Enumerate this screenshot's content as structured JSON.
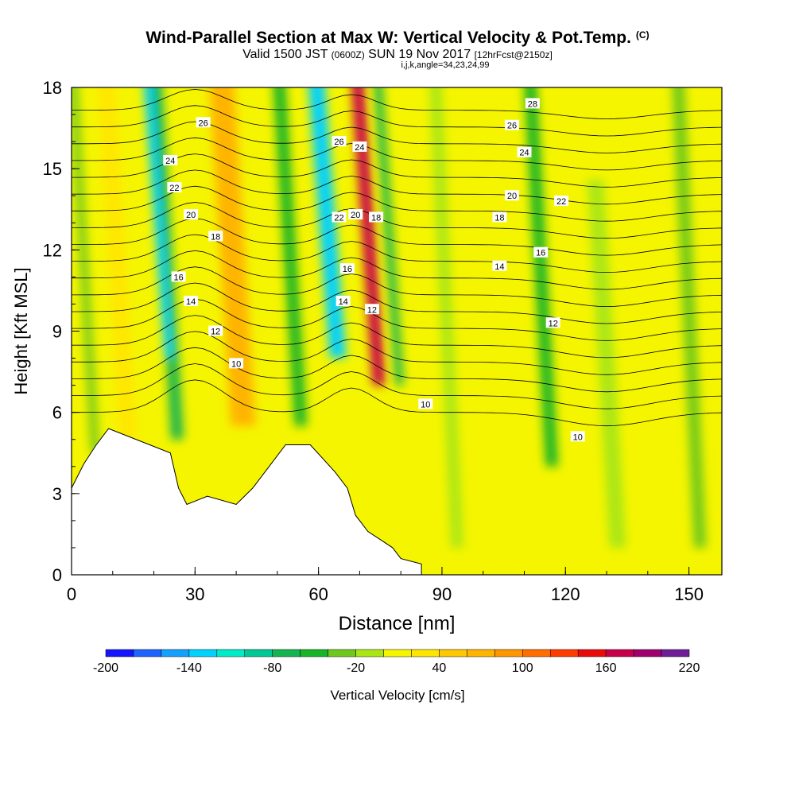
{
  "title": {
    "main": "Wind-Parallel Section at Max W: Vertical Velocity & Pot.Temp.",
    "copyright": "(C)",
    "valid_a": "Valid 1500 JST",
    "valid_small": "(0600Z)",
    "valid_b": "SUN 19 Nov 2017",
    "forecast": "[12hrFcst@2150z]",
    "indices": "i,j,k,angle=34,23,24,99"
  },
  "chart_data": {
    "type": "heatmap",
    "xlabel": "Distance [nm]",
    "ylabel": "Height [Kft MSL]",
    "xlim": [
      0,
      158
    ],
    "ylim": [
      0,
      18
    ],
    "x_ticks": [
      0,
      30,
      60,
      90,
      120,
      150
    ],
    "y_ticks": [
      0,
      3,
      6,
      9,
      12,
      15,
      18
    ],
    "colorbar": {
      "label": "Vertical Velocity [cm/s]",
      "levels": [
        -200,
        -180,
        -160,
        -140,
        -120,
        -100,
        -80,
        -60,
        -40,
        -20,
        0,
        20,
        40,
        60,
        80,
        100,
        120,
        140,
        160,
        180,
        200,
        220
      ],
      "tick_labels": [
        "-200",
        "-140",
        "-80",
        "-20",
        "40",
        "100",
        "160",
        "220"
      ],
      "colors": [
        "#1414ff",
        "#1e64ff",
        "#14a0ff",
        "#00d2ff",
        "#00ebc8",
        "#00c896",
        "#14b450",
        "#18b428",
        "#6ec81e",
        "#aae614",
        "#f5f500",
        "#ffe600",
        "#ffc800",
        "#ffb400",
        "#ff9600",
        "#ff6e00",
        "#ff3c00",
        "#eb0a0a",
        "#c8004b",
        "#a0006e",
        "#6e1e96"
      ]
    },
    "vertical_velocity_bands": [
      {
        "x": 3,
        "w": 2,
        "top": 18,
        "bottom": 4.5,
        "value": -40
      },
      {
        "x": 11,
        "w": 4,
        "top": 18,
        "bottom": 5.0,
        "value": 30
      },
      {
        "x": 23,
        "w": 3,
        "top": 18,
        "bottom": 5.0,
        "value": -80
      },
      {
        "x": 21,
        "w": 2,
        "top": 18,
        "bottom": 8.0,
        "value": -140
      },
      {
        "x": 39,
        "w": 6,
        "top": 18,
        "bottom": 5.5,
        "value": 70
      },
      {
        "x": 53,
        "w": 3,
        "top": 18,
        "bottom": 5.5,
        "value": -60
      },
      {
        "x": 62,
        "w": 4,
        "top": 18,
        "bottom": 8.0,
        "value": -140
      },
      {
        "x": 72,
        "w": 3,
        "top": 18,
        "bottom": 7.0,
        "value": 160
      },
      {
        "x": 77,
        "w": 2,
        "top": 18,
        "bottom": 7.0,
        "value": -80
      },
      {
        "x": 91,
        "w": 3,
        "top": 18,
        "bottom": 1.0,
        "value": -20
      },
      {
        "x": 114,
        "w": 3,
        "top": 18,
        "bottom": 4.0,
        "value": -60
      },
      {
        "x": 130,
        "w": 4,
        "top": 14,
        "bottom": 1.0,
        "value": -20
      },
      {
        "x": 150,
        "w": 3,
        "top": 18,
        "bottom": 1.0,
        "value": -30
      }
    ],
    "terrain": [
      [
        0,
        3.2
      ],
      [
        3,
        4.1
      ],
      [
        6,
        4.8
      ],
      [
        9,
        5.4
      ],
      [
        24,
        4.5
      ],
      [
        26,
        3.2
      ],
      [
        28,
        2.6
      ],
      [
        33,
        2.9
      ],
      [
        40,
        2.6
      ],
      [
        44,
        3.2
      ],
      [
        48,
        4.0
      ],
      [
        52,
        4.8
      ],
      [
        58,
        4.8
      ],
      [
        64,
        3.8
      ],
      [
        67,
        3.2
      ],
      [
        69,
        2.2
      ],
      [
        72,
        1.6
      ],
      [
        75,
        1.3
      ],
      [
        78,
        1.0
      ],
      [
        80,
        0.6
      ],
      [
        85,
        0.4
      ]
    ],
    "theta_contour_labels": [
      {
        "x": 32,
        "y": 16.7,
        "label": "26"
      },
      {
        "x": 24,
        "y": 15.3,
        "label": "24"
      },
      {
        "x": 25,
        "y": 14.3,
        "label": "22"
      },
      {
        "x": 29,
        "y": 13.3,
        "label": "20"
      },
      {
        "x": 35,
        "y": 12.5,
        "label": "18"
      },
      {
        "x": 26,
        "y": 11.0,
        "label": "16"
      },
      {
        "x": 29,
        "y": 10.1,
        "label": "14"
      },
      {
        "x": 35,
        "y": 9.0,
        "label": "12"
      },
      {
        "x": 40,
        "y": 7.8,
        "label": "10"
      },
      {
        "x": 65,
        "y": 16.0,
        "label": "26"
      },
      {
        "x": 70,
        "y": 15.8,
        "label": "24"
      },
      {
        "x": 65,
        "y": 13.2,
        "label": "22"
      },
      {
        "x": 69,
        "y": 13.3,
        "label": "20"
      },
      {
        "x": 74,
        "y": 13.2,
        "label": "18"
      },
      {
        "x": 67,
        "y": 11.3,
        "label": "16"
      },
      {
        "x": 66,
        "y": 10.1,
        "label": "14"
      },
      {
        "x": 73,
        "y": 9.8,
        "label": "12"
      },
      {
        "x": 86,
        "y": 6.3,
        "label": "10"
      },
      {
        "x": 112,
        "y": 17.4,
        "label": "28"
      },
      {
        "x": 107,
        "y": 16.6,
        "label": "26"
      },
      {
        "x": 110,
        "y": 15.6,
        "label": "24"
      },
      {
        "x": 107,
        "y": 14.0,
        "label": "20"
      },
      {
        "x": 119,
        "y": 13.8,
        "label": "22"
      },
      {
        "x": 104,
        "y": 13.2,
        "label": "18"
      },
      {
        "x": 114,
        "y": 11.9,
        "label": "16"
      },
      {
        "x": 104,
        "y": 11.4,
        "label": "14"
      },
      {
        "x": 117,
        "y": 9.3,
        "label": "12"
      },
      {
        "x": 123,
        "y": 5.1,
        "label": "10"
      }
    ],
    "theta_contour_levels": [
      10,
      11,
      12,
      13,
      14,
      15,
      16,
      17,
      18,
      19,
      20,
      21,
      22,
      23,
      24,
      25,
      26,
      27,
      28
    ]
  }
}
